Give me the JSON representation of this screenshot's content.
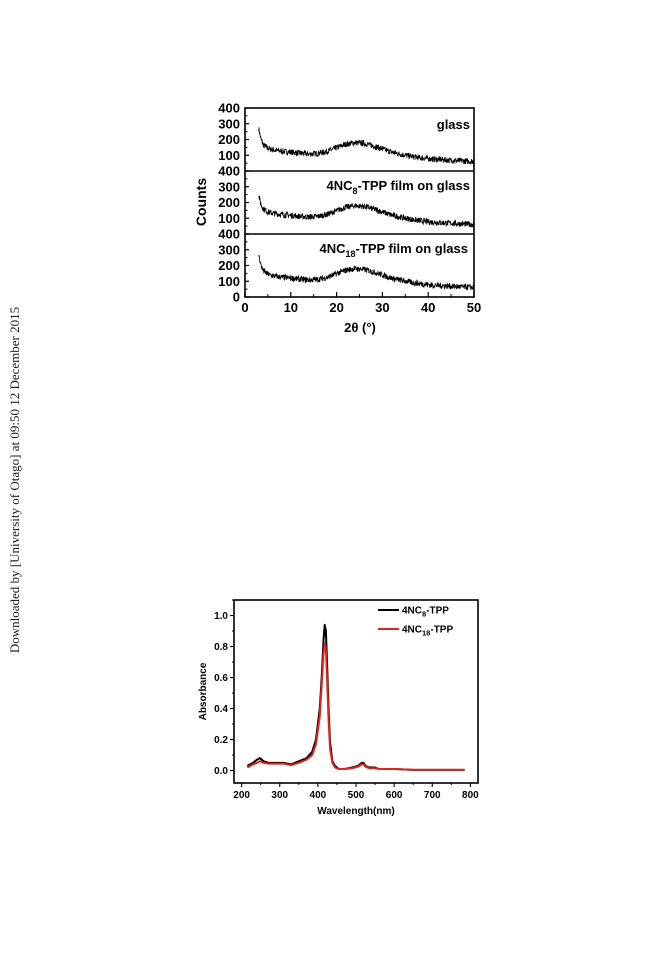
{
  "margin_note": "Downloaded by [University of Otago] at 09:50 12 December 2015",
  "chart_data": [
    {
      "type": "line",
      "xlabel": "2θ (°)",
      "ylabel": "Counts",
      "xlim": [
        0,
        50
      ],
      "ylim": [
        0,
        400
      ],
      "x_ticks": [
        "0",
        "10",
        "20",
        "30",
        "40",
        "50"
      ],
      "y_ticks": [
        "0",
        "100",
        "200",
        "300",
        "400"
      ],
      "grid": false,
      "layout": "three stacked panels sharing x axis",
      "panels": [
        {
          "name": "glass",
          "x": [
            3,
            3.5,
            4,
            5,
            6,
            7,
            8,
            10,
            12,
            14,
            16,
            18,
            20,
            22,
            24,
            26,
            28,
            30,
            32,
            35,
            38,
            41,
            44,
            47,
            50
          ],
          "y": [
            270,
            200,
            165,
            145,
            135,
            130,
            125,
            120,
            113,
            108,
            112,
            125,
            148,
            170,
            180,
            175,
            160,
            140,
            120,
            100,
            85,
            75,
            70,
            65,
            60
          ]
        },
        {
          "name": "4NC8-TPP film on glass",
          "x": [
            3,
            3.5,
            4,
            5,
            6,
            7,
            8,
            10,
            12,
            14,
            16,
            18,
            20,
            22,
            24,
            26,
            28,
            30,
            32,
            35,
            38,
            41,
            44,
            47,
            50
          ],
          "y": [
            245,
            185,
            160,
            140,
            132,
            128,
            124,
            118,
            112,
            108,
            112,
            125,
            148,
            170,
            180,
            175,
            160,
            140,
            120,
            100,
            85,
            75,
            70,
            65,
            60
          ]
        },
        {
          "name": "4NC18-TPP film on glass",
          "x": [
            3,
            3.5,
            4,
            5,
            6,
            7,
            8,
            10,
            12,
            14,
            16,
            18,
            20,
            22,
            24,
            26,
            28,
            30,
            32,
            35,
            38,
            41,
            44,
            47,
            50
          ],
          "y": [
            270,
            200,
            165,
            145,
            135,
            130,
            125,
            120,
            113,
            108,
            112,
            125,
            148,
            170,
            180,
            175,
            160,
            140,
            120,
            100,
            85,
            75,
            70,
            65,
            60
          ]
        }
      ]
    },
    {
      "type": "line",
      "xlabel": "Wavelength(nm)",
      "ylabel": "Absorbance",
      "xlim": [
        180,
        820
      ],
      "ylim": [
        -0.08,
        1.1
      ],
      "x_ticks": [
        "200",
        "300",
        "400",
        "500",
        "600",
        "700",
        "800"
      ],
      "y_ticks": [
        "0.0",
        "0.2",
        "0.4",
        "0.6",
        "0.8",
        "1.0"
      ],
      "grid": false,
      "legend_position": "top-right",
      "series": [
        {
          "name": "4NC8-TPP",
          "color": "#000000",
          "x": [
            215,
            230,
            240,
            248,
            258,
            270,
            290,
            310,
            330,
            350,
            370,
            385,
            395,
            405,
            410,
            415,
            418,
            421,
            424,
            428,
            432,
            438,
            445,
            455,
            470,
            490,
            505,
            515,
            520,
            525,
            535,
            550,
            560,
            580,
            600,
            650,
            700,
            750,
            785
          ],
          "y": [
            0.03,
            0.05,
            0.07,
            0.08,
            0.06,
            0.05,
            0.05,
            0.05,
            0.04,
            0.06,
            0.08,
            0.12,
            0.2,
            0.4,
            0.6,
            0.85,
            0.94,
            0.9,
            0.7,
            0.4,
            0.18,
            0.06,
            0.03,
            0.01,
            0.01,
            0.02,
            0.03,
            0.05,
            0.05,
            0.03,
            0.02,
            0.02,
            0.01,
            0.01,
            0.01,
            0.005,
            0.005,
            0.005,
            0.005
          ]
        },
        {
          "name": "4NC18-TPP",
          "color": "#e2231a",
          "x": [
            215,
            230,
            240,
            248,
            258,
            270,
            290,
            310,
            330,
            350,
            370,
            385,
            395,
            405,
            410,
            415,
            418,
            421,
            424,
            428,
            432,
            438,
            445,
            455,
            470,
            490,
            505,
            515,
            520,
            525,
            535,
            550,
            560,
            580,
            600,
            650,
            700,
            750,
            785
          ],
          "y": [
            0.02,
            0.04,
            0.05,
            0.06,
            0.05,
            0.045,
            0.045,
            0.045,
            0.035,
            0.05,
            0.07,
            0.1,
            0.17,
            0.35,
            0.55,
            0.76,
            0.82,
            0.78,
            0.6,
            0.33,
            0.14,
            0.05,
            0.02,
            0.01,
            0.01,
            0.015,
            0.025,
            0.04,
            0.04,
            0.025,
            0.015,
            0.015,
            0.01,
            0.01,
            0.01,
            0.005,
            0.005,
            0.005,
            0.005
          ]
        }
      ]
    }
  ]
}
